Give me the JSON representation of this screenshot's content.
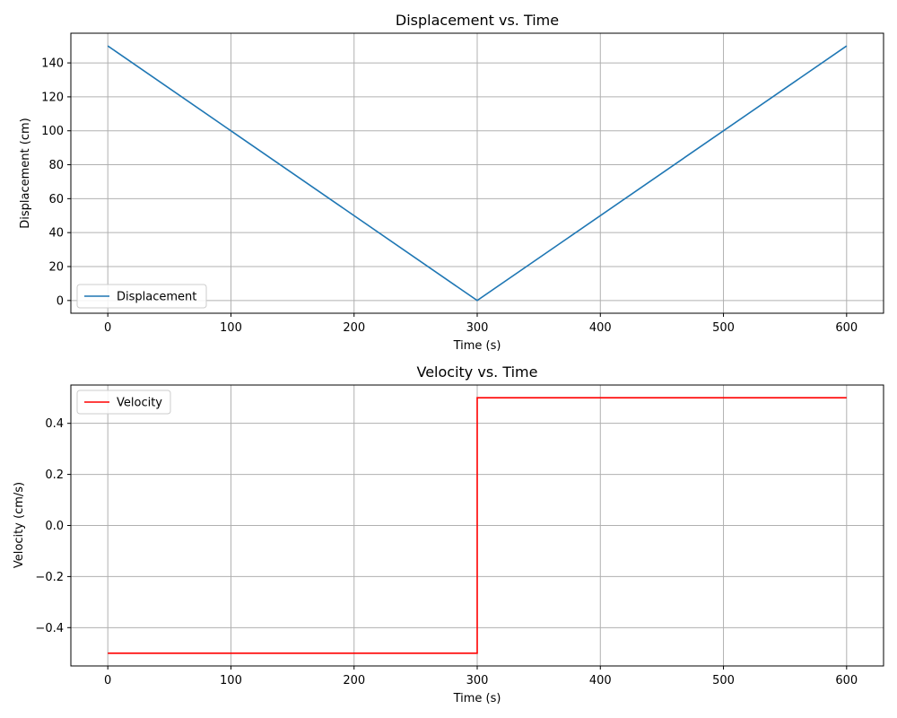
{
  "chart_data": [
    {
      "type": "line",
      "title": "Displacement vs. Time",
      "xlabel": "Time (s)",
      "ylabel": "Displacement (cm)",
      "xlim": [
        -30,
        630
      ],
      "ylim": [
        -7.5,
        157.5
      ],
      "xticks": [
        0,
        100,
        200,
        300,
        400,
        500,
        600
      ],
      "xtick_labels": [
        "0",
        "100",
        "200",
        "300",
        "400",
        "500",
        "600"
      ],
      "yticks": [
        0,
        20,
        40,
        60,
        80,
        100,
        120,
        140
      ],
      "ytick_labels": [
        "0",
        "20",
        "40",
        "60",
        "80",
        "100",
        "120",
        "140"
      ],
      "grid": true,
      "legend_position": "lower-left",
      "series": [
        {
          "name": "Displacement",
          "color": "#1f77b4",
          "x": [
            0,
            300,
            600
          ],
          "y": [
            150,
            0,
            150
          ]
        }
      ]
    },
    {
      "type": "line",
      "title": "Velocity vs. Time",
      "xlabel": "Time (s)",
      "ylabel": "Velocity (cm/s)",
      "xlim": [
        -30,
        630
      ],
      "ylim": [
        -0.55,
        0.55
      ],
      "xticks": [
        0,
        100,
        200,
        300,
        400,
        500,
        600
      ],
      "xtick_labels": [
        "0",
        "100",
        "200",
        "300",
        "400",
        "500",
        "600"
      ],
      "yticks": [
        -0.4,
        -0.2,
        0.0,
        0.2,
        0.4
      ],
      "ytick_labels": [
        "−0.4",
        "−0.2",
        "0.0",
        "0.2",
        "0.4"
      ],
      "grid": true,
      "legend_position": "upper-left",
      "series": [
        {
          "name": "Velocity",
          "color": "#ff0000",
          "x": [
            0,
            300,
            300,
            600
          ],
          "y": [
            -0.5,
            -0.5,
            0.5,
            0.5
          ]
        }
      ]
    }
  ]
}
